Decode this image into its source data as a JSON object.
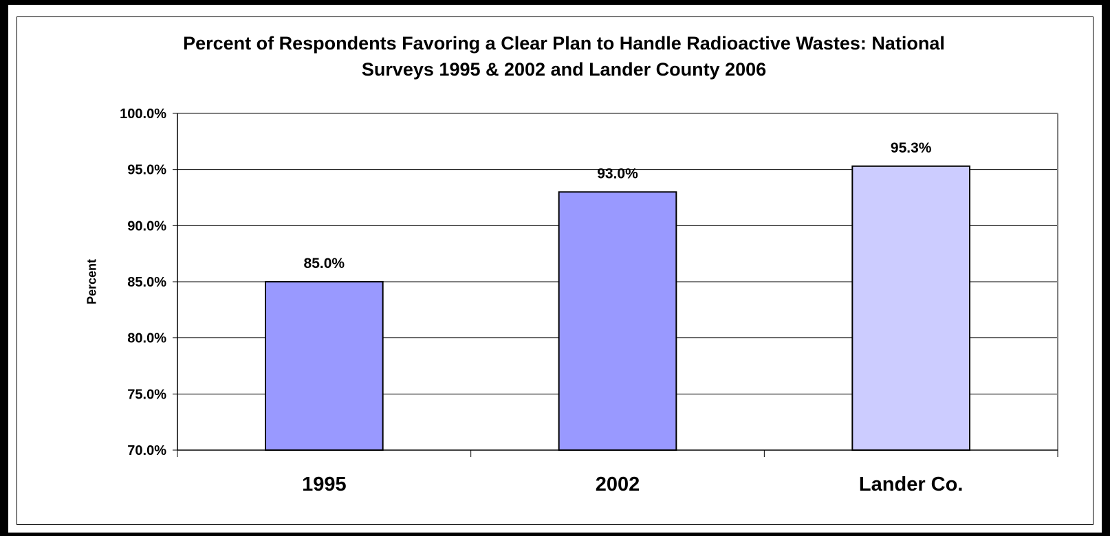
{
  "chart_data": {
    "type": "bar",
    "title_line1": "Percent of Respondents Favoring a Clear Plan to Handle Radioactive Wastes: National",
    "title_line2": "Surveys 1995 & 2002 and Lander County 2006",
    "xlabel": "",
    "ylabel": "Percent",
    "ylim": [
      70,
      100
    ],
    "ytick_step": 5,
    "y_tick_labels": [
      "70.0%",
      "75.0%",
      "80.0%",
      "85.0%",
      "90.0%",
      "95.0%",
      "100.0%"
    ],
    "grid": true,
    "legend": "none",
    "categories": [
      "1995",
      "2002",
      "Lander Co."
    ],
    "values": [
      85.0,
      93.0,
      95.3
    ],
    "value_labels": [
      "85.0%",
      "93.0%",
      "95.3%"
    ],
    "bar_colors": [
      "#9999ff",
      "#9999ff",
      "#ccccff"
    ]
  }
}
